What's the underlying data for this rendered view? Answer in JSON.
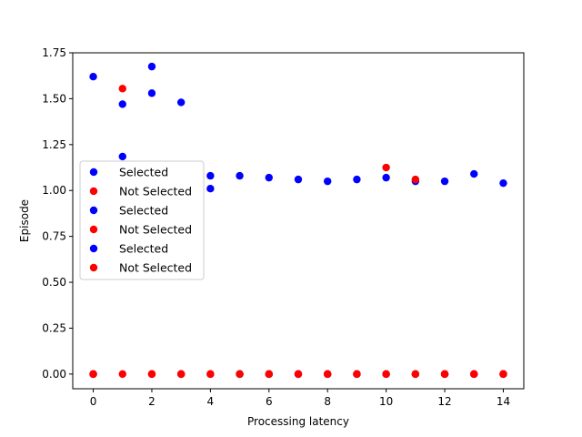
{
  "chart_data": {
    "type": "scatter",
    "title": "",
    "xlabel": "Processing latency",
    "ylabel": "Episode",
    "xlim": [
      -0.7,
      14.7
    ],
    "ylim": [
      -0.08,
      1.75
    ],
    "xticks": [
      0,
      2,
      4,
      6,
      8,
      10,
      12,
      14
    ],
    "yticks": [
      0.0,
      0.25,
      0.5,
      0.75,
      1.0,
      1.25,
      1.5,
      1.75
    ],
    "ytick_labels": [
      "0.00",
      "0.25",
      "0.50",
      "0.75",
      "1.00",
      "1.25",
      "1.50",
      "1.75"
    ],
    "grid": false,
    "legend_position": "center-left",
    "series": [
      {
        "name": "Selected",
        "color": "#0000ff",
        "x": [
          0,
          1,
          2,
          3,
          4,
          5,
          6,
          7,
          8,
          9,
          10,
          11,
          12,
          13,
          14
        ],
        "y": [
          1.62,
          1.47,
          1.53,
          1.48,
          1.08,
          1.08,
          1.07,
          1.06,
          1.05,
          1.06,
          1.07,
          1.05,
          1.05,
          1.09,
          1.04
        ]
      },
      {
        "name": "Not Selected",
        "color": "#ff0000",
        "x": [
          0,
          1,
          2,
          3,
          4,
          5,
          6,
          7,
          8,
          9,
          10,
          11,
          12,
          13,
          14
        ],
        "y": [
          0,
          1.555,
          0,
          0,
          0,
          0,
          0,
          0,
          0,
          0,
          1.125,
          1.06,
          0,
          0,
          0
        ]
      },
      {
        "name": "Selected",
        "color": "#0000ff",
        "x": [
          0,
          1,
          2,
          3,
          4,
          5,
          6,
          7,
          8,
          9,
          10,
          11,
          12,
          13,
          14
        ],
        "y": [
          0,
          1.185,
          1.675,
          0,
          1.01,
          0,
          0,
          0,
          0,
          0,
          0,
          0,
          0,
          0,
          0
        ]
      },
      {
        "name": "Not Selected",
        "color": "#ff0000",
        "x": [
          0,
          1,
          2,
          3,
          4,
          5,
          6,
          7,
          8,
          9,
          10,
          11,
          12,
          13,
          14
        ],
        "y": [
          0,
          0,
          0,
          0,
          0,
          0,
          0,
          0,
          0,
          0,
          0,
          0,
          0,
          0,
          0
        ]
      },
      {
        "name": "Selected",
        "color": "#0000ff",
        "x": [],
        "y": []
      },
      {
        "name": "Not Selected",
        "color": "#ff0000",
        "x": [
          0,
          2,
          3,
          4,
          5,
          6,
          7,
          8,
          9,
          10,
          11,
          12,
          13,
          14
        ],
        "y": [
          0,
          0,
          0,
          0,
          0,
          0,
          0,
          0,
          0,
          0,
          0,
          0,
          0,
          0
        ]
      }
    ]
  }
}
